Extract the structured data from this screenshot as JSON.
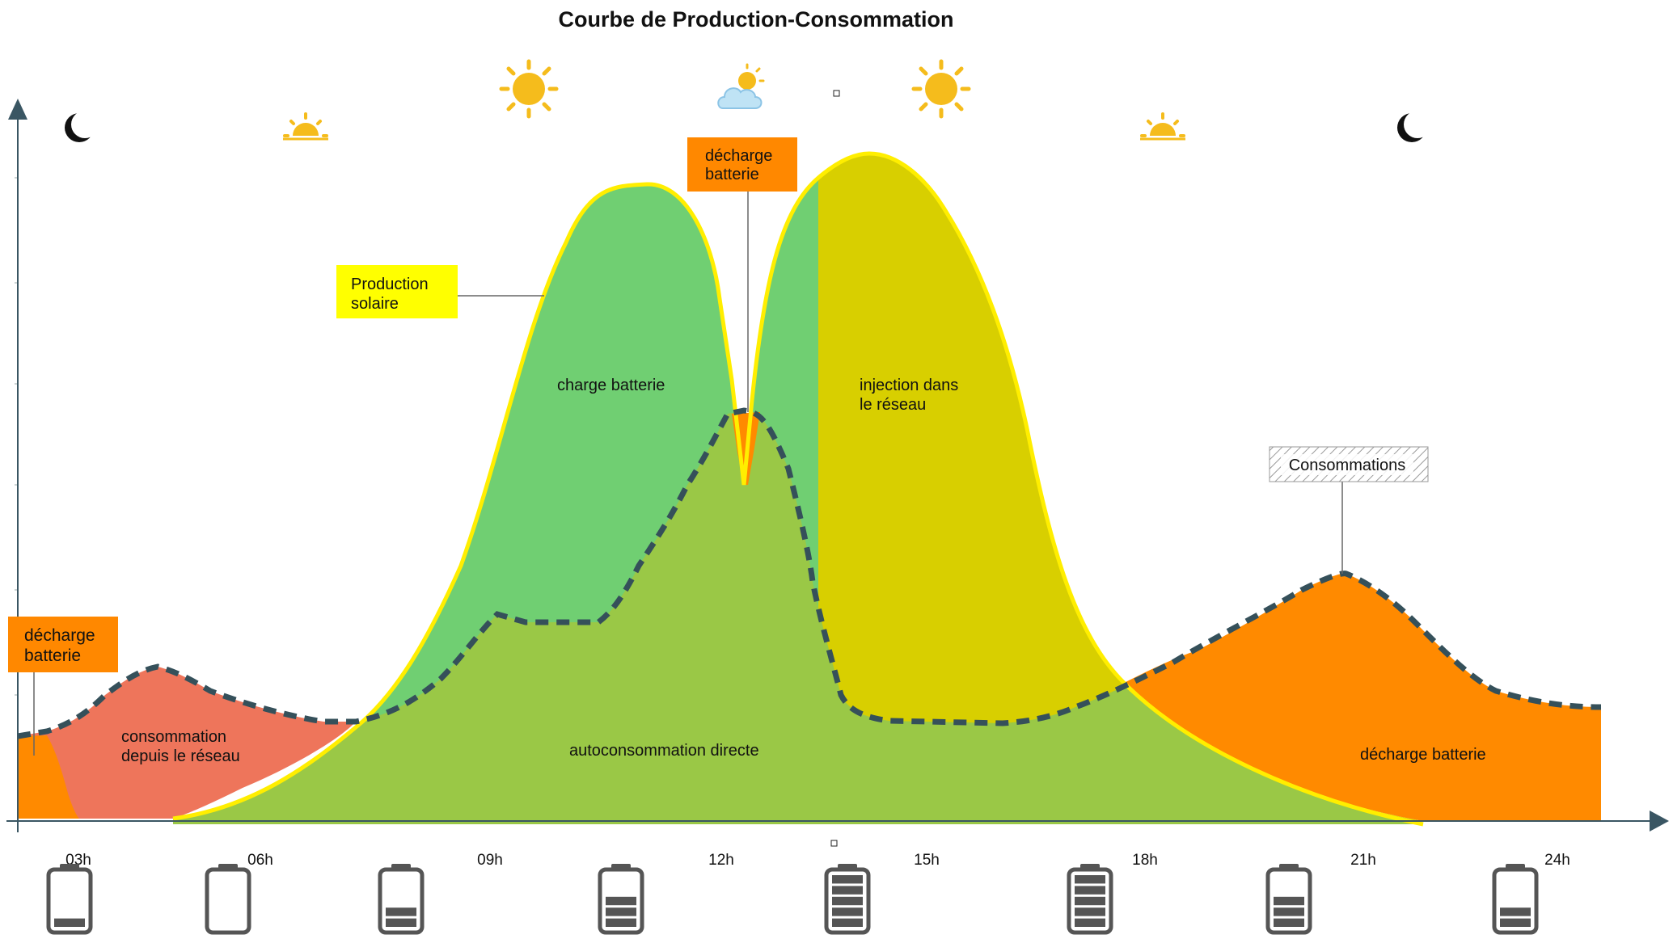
{
  "title": "Courbe de Production-Consommation",
  "hour_labels": [
    "03h",
    "06h",
    "09h",
    "12h",
    "15h",
    "18h",
    "21h",
    "24h"
  ],
  "callouts": {
    "production": [
      "Production",
      "solaire"
    ],
    "decharge_top": [
      "décharge",
      "batterie"
    ],
    "decharge_left": [
      "décharge",
      "batterie"
    ],
    "consommations": "Consommations"
  },
  "region_labels": {
    "grid_consumption": [
      "consommation",
      "depuis le réseau"
    ],
    "battery_charge": "charge batterie",
    "grid_injection": [
      "injection dans",
      "le réseau"
    ],
    "direct_selfconsumption": "autoconsommation directe",
    "battery_discharge_evening": "décharge batterie"
  },
  "sky_icons": [
    "moon-icon",
    "sunrise-icon",
    "sun-icon",
    "sun-cloud-icon",
    "sun-icon",
    "sunset-icon",
    "moon-icon"
  ],
  "battery_levels": [
    0.15,
    0.0,
    0.4,
    0.6,
    1.0,
    1.0,
    0.6,
    0.4
  ],
  "colors": {
    "production_curve": "#ffee00",
    "charge_area": "#70cf72",
    "selfconsumption_area": "#9ac846",
    "injection_area": "#d8cf00",
    "discharge_area": "#ff8a00",
    "grid_area": "#ee755b",
    "consumption_curve": "#35505a",
    "axis": "#3a5663",
    "sun": "#f5bc1c",
    "label_yellow": "#ffff00",
    "label_orange": "#ff8800"
  }
}
